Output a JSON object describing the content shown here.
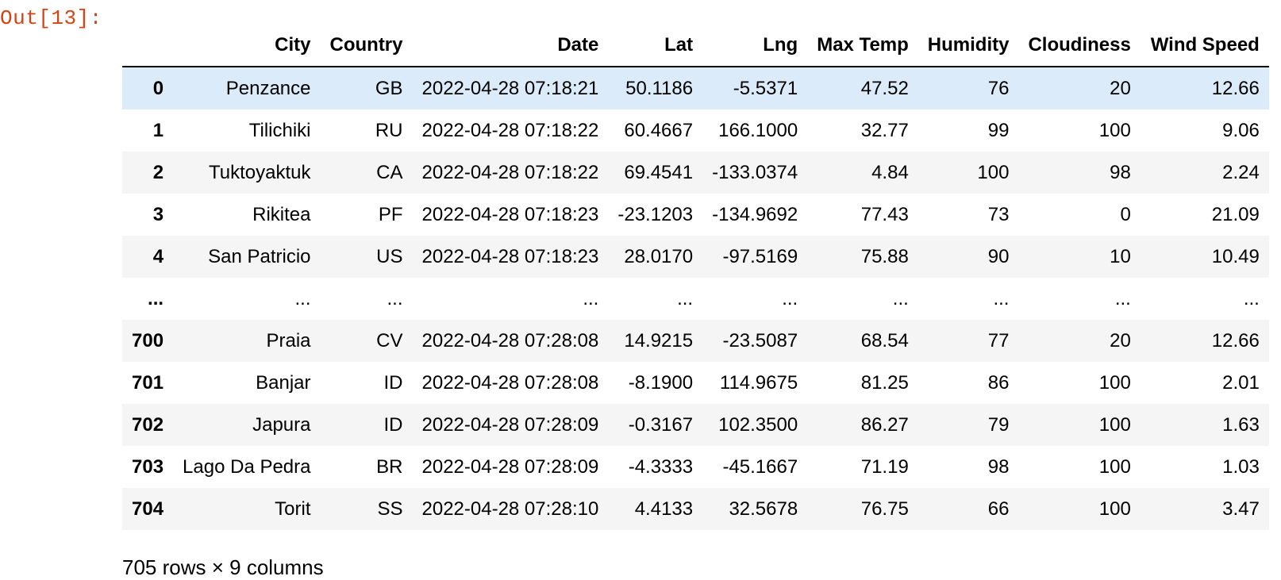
{
  "cell_output": {
    "prompt": "Out[13]:"
  },
  "table": {
    "columns": [
      "",
      "City",
      "Country",
      "Date",
      "Lat",
      "Lng",
      "Max Temp",
      "Humidity",
      "Cloudiness",
      "Wind Speed"
    ],
    "rows": [
      {
        "index": "0",
        "city": "Penzance",
        "country": "GB",
        "date": "2022-04-28 07:18:21",
        "lat": "50.1186",
        "lng": "-5.5371",
        "max_temp": "47.52",
        "humidity": "76",
        "cloudiness": "20",
        "wind_speed": "12.66"
      },
      {
        "index": "1",
        "city": "Tilichiki",
        "country": "RU",
        "date": "2022-04-28 07:18:22",
        "lat": "60.4667",
        "lng": "166.1000",
        "max_temp": "32.77",
        "humidity": "99",
        "cloudiness": "100",
        "wind_speed": "9.06"
      },
      {
        "index": "2",
        "city": "Tuktoyaktuk",
        "country": "CA",
        "date": "2022-04-28 07:18:22",
        "lat": "69.4541",
        "lng": "-133.0374",
        "max_temp": "4.84",
        "humidity": "100",
        "cloudiness": "98",
        "wind_speed": "2.24"
      },
      {
        "index": "3",
        "city": "Rikitea",
        "country": "PF",
        "date": "2022-04-28 07:18:23",
        "lat": "-23.1203",
        "lng": "-134.9692",
        "max_temp": "77.43",
        "humidity": "73",
        "cloudiness": "0",
        "wind_speed": "21.09"
      },
      {
        "index": "4",
        "city": "San Patricio",
        "country": "US",
        "date": "2022-04-28 07:18:23",
        "lat": "28.0170",
        "lng": "-97.5169",
        "max_temp": "75.88",
        "humidity": "90",
        "cloudiness": "10",
        "wind_speed": "10.49"
      },
      {
        "index": "...",
        "city": "...",
        "country": "...",
        "date": "...",
        "lat": "...",
        "lng": "...",
        "max_temp": "...",
        "humidity": "...",
        "cloudiness": "...",
        "wind_speed": "..."
      },
      {
        "index": "700",
        "city": "Praia",
        "country": "CV",
        "date": "2022-04-28 07:28:08",
        "lat": "14.9215",
        "lng": "-23.5087",
        "max_temp": "68.54",
        "humidity": "77",
        "cloudiness": "20",
        "wind_speed": "12.66"
      },
      {
        "index": "701",
        "city": "Banjar",
        "country": "ID",
        "date": "2022-04-28 07:28:08",
        "lat": "-8.1900",
        "lng": "114.9675",
        "max_temp": "81.25",
        "humidity": "86",
        "cloudiness": "100",
        "wind_speed": "2.01"
      },
      {
        "index": "702",
        "city": "Japura",
        "country": "ID",
        "date": "2022-04-28 07:28:09",
        "lat": "-0.3167",
        "lng": "102.3500",
        "max_temp": "86.27",
        "humidity": "79",
        "cloudiness": "100",
        "wind_speed": "1.63"
      },
      {
        "index": "703",
        "city": "Lago Da Pedra",
        "country": "BR",
        "date": "2022-04-28 07:28:09",
        "lat": "-4.3333",
        "lng": "-45.1667",
        "max_temp": "71.19",
        "humidity": "98",
        "cloudiness": "100",
        "wind_speed": "1.03"
      },
      {
        "index": "704",
        "city": "Torit",
        "country": "SS",
        "date": "2022-04-28 07:28:10",
        "lat": "4.4133",
        "lng": "32.5678",
        "max_temp": "76.75",
        "humidity": "66",
        "cloudiness": "100",
        "wind_speed": "3.47"
      }
    ],
    "hovered_row_index": 0,
    "shape_text": "705 rows × 9 columns"
  },
  "colors": {
    "prompt": "#d84315",
    "row_hover": "#dcebf9",
    "row_stripe": "#f5f5f5"
  }
}
